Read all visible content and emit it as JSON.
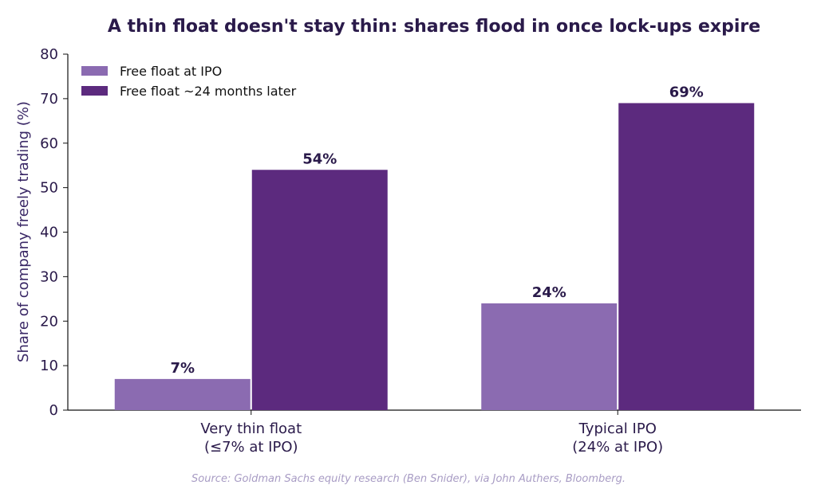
{
  "chart_data": {
    "type": "bar",
    "title": "A thin float doesn't stay thin: shares flood in once lock-ups expire",
    "ylabel": "Share of company freely trading (%)",
    "xlabel": "",
    "ylim": [
      0,
      80
    ],
    "yticks": [
      0,
      10,
      20,
      30,
      40,
      50,
      60,
      70,
      80
    ],
    "grid": false,
    "legend_position": "top-left",
    "categories": [
      [
        "Very thin float",
        "(≤7% at IPO)"
      ],
      [
        "Typical IPO",
        "(24% at IPO)"
      ]
    ],
    "series": [
      {
        "name": "Free float at IPO",
        "values": [
          7,
          24
        ],
        "labels": [
          "7%",
          "24%"
        ],
        "color": "#8b6bb1"
      },
      {
        "name": "Free float ~24 months later",
        "values": [
          54,
          69
        ],
        "labels": [
          "54%",
          "69%"
        ],
        "color": "#5c2a7e"
      }
    ]
  },
  "source": "Source: Goldman Sachs equity research (Ben Snider), via John Authers, Bloomberg."
}
